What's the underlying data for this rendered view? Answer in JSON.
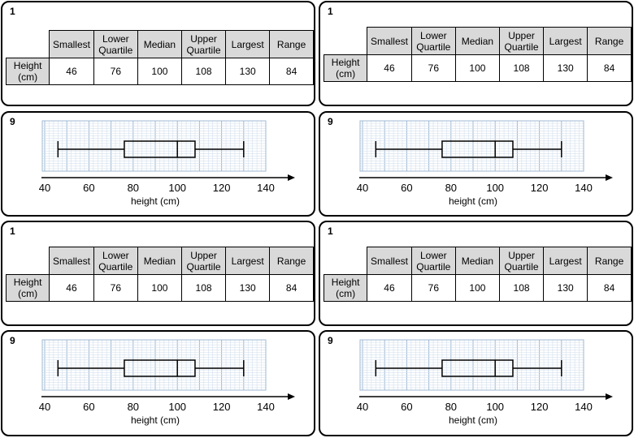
{
  "tables": [
    {
      "number": "1",
      "columns": [
        "Smallest",
        "Lower Quartile",
        "Median",
        "Upper Quartile",
        "Largest",
        "Range"
      ],
      "row_label": "Height (cm)",
      "values": [
        "46",
        "76",
        "100",
        "108",
        "130",
        "84"
      ]
    },
    {
      "number": "1",
      "columns": [
        "Smallest",
        "Lower Quartile",
        "Median",
        "Upper Quartile",
        "Largest",
        "Range"
      ],
      "row_label": "Height (cm)",
      "values": [
        "46",
        "76",
        "100",
        "108",
        "130",
        "84"
      ]
    },
    {
      "number": "1",
      "columns": [
        "Smallest",
        "Lower Quartile",
        "Median",
        "Upper Quartile",
        "Largest",
        "Range"
      ],
      "row_label": "Height (cm)",
      "values": [
        "46",
        "76",
        "100",
        "108",
        "130",
        "84"
      ]
    },
    {
      "number": "1",
      "columns": [
        "Smallest",
        "Lower Quartile",
        "Median",
        "Upper Quartile",
        "Largest",
        "Range"
      ],
      "row_label": "Height (cm)",
      "values": [
        "46",
        "76",
        "100",
        "108",
        "130",
        "84"
      ]
    }
  ],
  "chart_data": [
    {
      "type": "box",
      "number": "9",
      "xlabel": "height (cm)",
      "x_ticks": [
        40,
        60,
        80,
        100,
        120,
        140
      ],
      "xlim": [
        40,
        140
      ],
      "grid": true,
      "box": {
        "min": 46,
        "q1": 76,
        "median": 100,
        "q3": 108,
        "max": 130
      }
    },
    {
      "type": "box",
      "number": "9",
      "xlabel": "height (cm)",
      "x_ticks": [
        40,
        60,
        80,
        100,
        120,
        140
      ],
      "xlim": [
        40,
        140
      ],
      "grid": true,
      "box": {
        "min": 46,
        "q1": 76,
        "median": 100,
        "q3": 108,
        "max": 130
      }
    },
    {
      "type": "box",
      "number": "9",
      "xlabel": "height (cm)",
      "x_ticks": [
        40,
        60,
        80,
        100,
        120,
        140
      ],
      "xlim": [
        40,
        140
      ],
      "grid": true,
      "box": {
        "min": 46,
        "q1": 76,
        "median": 100,
        "q3": 108,
        "max": 130
      }
    },
    {
      "type": "box",
      "number": "9",
      "xlabel": "height (cm)",
      "x_ticks": [
        40,
        60,
        80,
        100,
        120,
        140
      ],
      "xlim": [
        40,
        140
      ],
      "grid": true,
      "box": {
        "min": 46,
        "q1": 76,
        "median": 100,
        "q3": 108,
        "max": 130
      }
    }
  ]
}
